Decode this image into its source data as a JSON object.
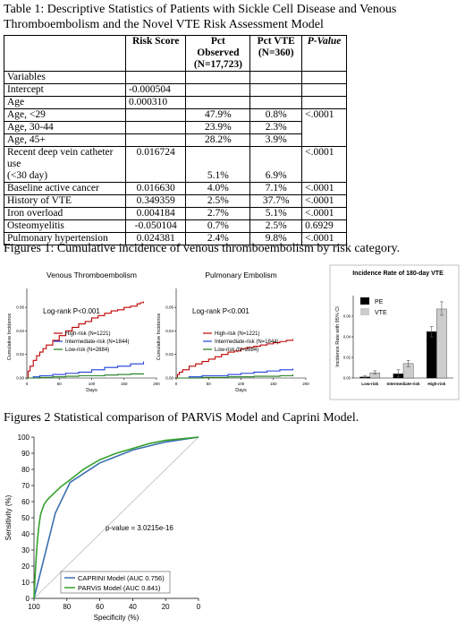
{
  "table1": {
    "caption": "Table 1: Descriptive Statistics of Patients with Sickle Cell Disease and Venous Thromboembolism and the Novel VTE Risk Assessment Model",
    "headers": {
      "risk_score": "Risk Score",
      "pct_observed": "Pct Observed",
      "pct_observed_n": "(N=17,723)",
      "pct_vte": "Pct VTE",
      "pct_vte_n": "(N=360)",
      "p_value": "P-Value"
    },
    "rows": {
      "variables": {
        "label": "Variables"
      },
      "intercept": {
        "label": "Intercept",
        "score": "-0.000504"
      },
      "age": {
        "label": "Age",
        "score": "0.000310"
      },
      "age_lt29": {
        "label": "Age, <29",
        "obs": "47.9%",
        "vte": "0.8%",
        "p": "<.0001"
      },
      "age_30_44": {
        "label": "Age, 30-44",
        "obs": "23.9%",
        "vte": "2.3%"
      },
      "age_45": {
        "label": "Age, 45+",
        "obs": "28.2%",
        "vte": "3.9%"
      },
      "catheter": {
        "label": "Recent deep vein catheter use",
        "label2": "(<30 day)",
        "score": "0.016724",
        "obs": "5.1%",
        "vte": "6.9%",
        "p": "<.0001"
      },
      "cancer": {
        "label": "Baseline active cancer",
        "score": "0.016630",
        "obs": "4.0%",
        "vte": "7.1%",
        "p": "<.0001"
      },
      "history": {
        "label": "History of VTE",
        "score": "0.349359",
        "obs": "2.5%",
        "vte": "37.7%",
        "p": "<.0001"
      },
      "iron": {
        "label": "Iron overload",
        "score": "0.004184",
        "obs": "2.7%",
        "vte": "5.1%",
        "p": "<.0001"
      },
      "osteo": {
        "label": "Osteomyelitis",
        "score": "-0.050104",
        "obs": "0.7%",
        "vte": "2.5%",
        "p": "0.6929"
      },
      "pulm": {
        "label": "Pulmonary hypertension",
        "score": "0.024381",
        "obs": "2.4%",
        "vte": "9.8%",
        "p": "<.0001"
      }
    }
  },
  "figure1": {
    "caption": "Figures 1: Cumulative incidence of venous thromboembolism by risk category."
  },
  "figure2": {
    "caption": "Figures 2 Statistical comparison of PARViS Model and Caprini Model."
  },
  "chart_data": [
    {
      "type": "line",
      "title": "Venous Thromboembolism",
      "xlabel": "Days",
      "ylabel": "Cumulative Incidence",
      "annotation": "Log-rank P<0.001",
      "xlim": [
        0,
        200
      ],
      "ylim": [
        0,
        0.07
      ],
      "xticks": [
        "0",
        "50",
        "100",
        "150",
        "200"
      ],
      "yticks": [
        "0.00",
        "0.02",
        "0.04",
        "0.06"
      ],
      "series": [
        {
          "name": "High-risk (N=1221)",
          "color": "#c00000",
          "x": [
            0,
            2,
            5,
            10,
            15,
            20,
            25,
            30,
            40,
            50,
            60,
            70,
            80,
            90,
            100,
            110,
            120,
            130,
            140,
            150,
            160,
            170,
            175,
            180
          ],
          "y": [
            0,
            0.006,
            0.01,
            0.015,
            0.019,
            0.022,
            0.025,
            0.028,
            0.032,
            0.036,
            0.04,
            0.043,
            0.046,
            0.048,
            0.051,
            0.053,
            0.055,
            0.057,
            0.058,
            0.06,
            0.061,
            0.063,
            0.064,
            0.065
          ]
        },
        {
          "name": "Intermediate-risk (N=1844)",
          "color": "#1f3fd6",
          "x": [
            0,
            10,
            20,
            40,
            60,
            80,
            100,
            120,
            140,
            160,
            180
          ],
          "y": [
            0,
            0.001,
            0.002,
            0.003,
            0.004,
            0.005,
            0.007,
            0.009,
            0.01,
            0.012,
            0.014
          ]
        },
        {
          "name": "Low-risk (N=2884)",
          "color": "#1a7a1a",
          "x": [
            0,
            20,
            40,
            60,
            80,
            100,
            120,
            140,
            160,
            180
          ],
          "y": [
            0,
            0.0005,
            0.001,
            0.0015,
            0.002,
            0.002,
            0.0025,
            0.003,
            0.0035,
            0.004
          ]
        }
      ]
    },
    {
      "type": "line",
      "title": "Pulmonary Embolism",
      "xlabel": "Days",
      "ylabel": "Cumulative Incidence",
      "annotation": "Log-rank P<0.001",
      "xlim": [
        0,
        200
      ],
      "ylim": [
        0,
        0.07
      ],
      "xticks": [
        "0",
        "50",
        "100",
        "150",
        "200"
      ],
      "yticks": [
        "0.00",
        "0.02",
        "0.04",
        "0.06"
      ],
      "series": [
        {
          "name": "High-risk (N=1221)",
          "color": "#c00000",
          "x": [
            0,
            2,
            5,
            10,
            20,
            30,
            40,
            50,
            60,
            70,
            80,
            90,
            100,
            110,
            120,
            130,
            140,
            150,
            160,
            170,
            180
          ],
          "y": [
            0,
            0.003,
            0.005,
            0.007,
            0.01,
            0.012,
            0.014,
            0.016,
            0.018,
            0.02,
            0.022,
            0.023,
            0.025,
            0.026,
            0.027,
            0.028,
            0.029,
            0.03,
            0.031,
            0.032,
            0.033
          ]
        },
        {
          "name": "Intermediate-risk (N=1844)",
          "color": "#1f3fd6",
          "x": [
            0,
            20,
            40,
            60,
            80,
            100,
            120,
            140,
            160,
            180
          ],
          "y": [
            0,
            0.001,
            0.002,
            0.002,
            0.003,
            0.004,
            0.005,
            0.006,
            0.007,
            0.008
          ]
        },
        {
          "name": "Low-risk (N=2884)",
          "color": "#1a7a1a",
          "x": [
            0,
            40,
            80,
            120,
            160,
            180
          ],
          "y": [
            0,
            0.0005,
            0.001,
            0.0015,
            0.002,
            0.003
          ]
        }
      ]
    },
    {
      "type": "bar",
      "title": "Incidence Rate of 180-day VTE",
      "ylabel": "Incidence Rate with 95% CI",
      "categories": [
        "Low-risk",
        "Intermediate-risk",
        "High-risk"
      ],
      "ylim": [
        0,
        0.08
      ],
      "yticks": [
        "0.00",
        "0.02",
        "0.04",
        "0.06"
      ],
      "series": [
        {
          "name": "PE",
          "color": "#000000",
          "values": [
            0.001,
            0.004,
            0.045
          ],
          "ci_low": [
            0.0,
            0.001,
            0.04
          ],
          "ci_high": [
            0.002,
            0.008,
            0.05
          ]
        },
        {
          "name": "VTE",
          "color": "#cccccc",
          "values": [
            0.005,
            0.014,
            0.067
          ],
          "ci_low": [
            0.004,
            0.011,
            0.061
          ],
          "ci_high": [
            0.007,
            0.017,
            0.074
          ]
        }
      ]
    },
    {
      "type": "line",
      "title": "",
      "xlabel": "Specificity (%)",
      "ylabel": "Sensitivity (%)",
      "annotation": "p-value = 3.0215e-16",
      "xlim": [
        100,
        0
      ],
      "ylim": [
        0,
        100
      ],
      "xticks": [
        "100",
        "80",
        "60",
        "40",
        "20",
        "0"
      ],
      "yticks": [
        "0",
        "10",
        "20",
        "30",
        "40",
        "50",
        "60",
        "70",
        "80",
        "90",
        "100"
      ],
      "series": [
        {
          "name": "CAPRINI Model (AUC 0.756)",
          "color": "#3a6fb0",
          "x": [
            100,
            87,
            78,
            60,
            40,
            20,
            0
          ],
          "y": [
            0,
            53,
            72,
            84,
            92,
            97,
            100
          ]
        },
        {
          "name": "PARViS Model (AUC 0.841)",
          "color": "#35a12c",
          "x": [
            100,
            99,
            98,
            97,
            96,
            94,
            92,
            90,
            87,
            84,
            80,
            75,
            70,
            65,
            60,
            55,
            50,
            40,
            30,
            20,
            10,
            0
          ],
          "y": [
            0,
            20,
            35,
            45,
            52,
            58,
            61,
            63,
            66,
            69,
            72,
            76,
            80,
            83,
            86,
            88,
            90,
            93,
            96,
            98,
            99,
            100
          ]
        }
      ]
    }
  ]
}
